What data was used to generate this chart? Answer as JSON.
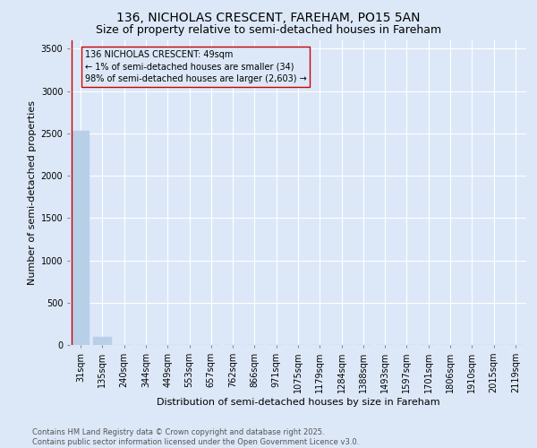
{
  "title": "136, NICHOLAS CRESCENT, FAREHAM, PO15 5AN",
  "subtitle": "Size of property relative to semi-detached houses in Fareham",
  "xlabel": "Distribution of semi-detached houses by size in Fareham",
  "ylabel": "Number of semi-detached properties",
  "footer_line1": "Contains HM Land Registry data © Crown copyright and database right 2025.",
  "footer_line2": "Contains public sector information licensed under the Open Government Licence v3.0.",
  "bar_labels": [
    "31sqm",
    "135sqm",
    "240sqm",
    "344sqm",
    "449sqm",
    "553sqm",
    "657sqm",
    "762sqm",
    "866sqm",
    "971sqm",
    "1075sqm",
    "1179sqm",
    "1284sqm",
    "1388sqm",
    "1493sqm",
    "1597sqm",
    "1701sqm",
    "1806sqm",
    "1910sqm",
    "2015sqm",
    "2119sqm"
  ],
  "bar_values": [
    2530,
    100,
    0,
    0,
    0,
    0,
    0,
    0,
    0,
    0,
    0,
    0,
    0,
    0,
    0,
    0,
    0,
    0,
    0,
    0,
    0
  ],
  "bar_color": "#b8cfe8",
  "annotation_text": "136 NICHOLAS CRESCENT: 49sqm\n← 1% of semi-detached houses are smaller (34)\n98% of semi-detached houses are larger (2,603) →",
  "annotation_box_edgecolor": "#cc0000",
  "ylim": [
    0,
    3600
  ],
  "yticks": [
    0,
    500,
    1000,
    1500,
    2000,
    2500,
    3000,
    3500
  ],
  "vline_color": "#cc0000",
  "bg_color": "#dce8f8",
  "grid_color": "#ffffff",
  "title_fontsize": 10,
  "subtitle_fontsize": 9,
  "ylabel_fontsize": 8,
  "xlabel_fontsize": 8,
  "tick_fontsize": 7,
  "annot_fontsize": 7,
  "footer_fontsize": 6
}
